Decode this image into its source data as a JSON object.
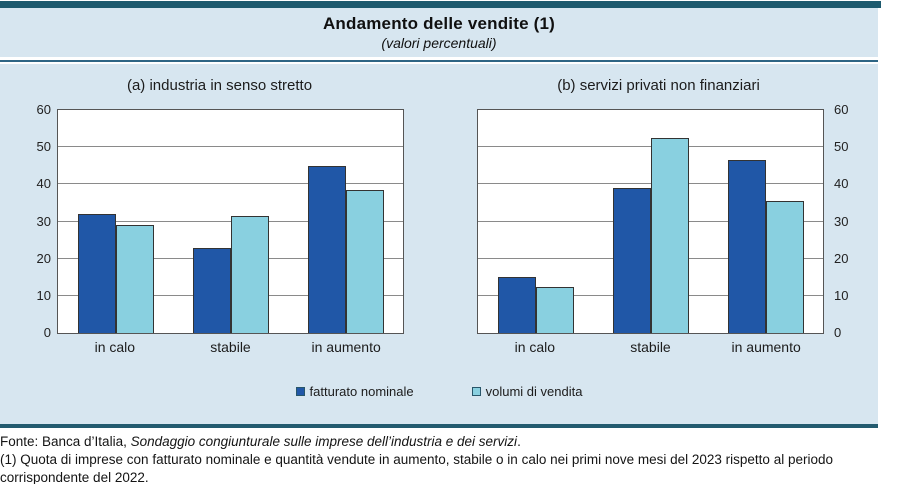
{
  "header": {
    "title": "Andamento delle vendite (1)",
    "subtitle": "(valori percentuali)"
  },
  "colors": {
    "band_background": "#d7e6f0",
    "top_rule": "#1d5a6e",
    "separator": "#2e6584",
    "bottom_rule": "#235b6f",
    "series_fatturato": "#2057a7",
    "series_volumi": "#89d0e0",
    "bar_border": "#333333",
    "gridline": "#8a8a8a"
  },
  "chart_data": [
    {
      "type": "bar",
      "title": "(a) industria in senso stretto",
      "categories": [
        "in calo",
        "stabile",
        "in aumento"
      ],
      "series": [
        {
          "name": "fatturato nominale",
          "color": "#2057a7",
          "values": [
            32,
            23,
            45
          ]
        },
        {
          "name": "volumi di vendita",
          "color": "#89d0e0",
          "values": [
            29,
            31.5,
            38.5
          ]
        }
      ],
      "ylim": [
        0,
        60
      ],
      "yticks": [
        0,
        10,
        20,
        30,
        40,
        50,
        60
      ],
      "grid": "horizontal",
      "axis_side": "left"
    },
    {
      "type": "bar",
      "title": "(b) servizi privati non finanziari",
      "categories": [
        "in calo",
        "stabile",
        "in aumento"
      ],
      "series": [
        {
          "name": "fatturato nominale",
          "color": "#2057a7",
          "values": [
            15,
            39,
            46.5
          ]
        },
        {
          "name": "volumi di vendita",
          "color": "#89d0e0",
          "values": [
            12.5,
            52.5,
            35.5
          ]
        }
      ],
      "ylim": [
        0,
        60
      ],
      "yticks": [
        0,
        10,
        20,
        30,
        40,
        50,
        60
      ],
      "grid": "horizontal",
      "axis_side": "right"
    }
  ],
  "legend": {
    "position": "bottom-center",
    "items": [
      {
        "label": "fatturato nominale",
        "color": "#2057a7"
      },
      {
        "label": "volumi di vendita",
        "color": "#89d0e0"
      }
    ]
  },
  "footnotes": {
    "fonte_prefix": "Fonte: Banca d’Italia, ",
    "fonte_italic": "Sondaggio congiunturale sulle imprese dell’industria e dei servizi",
    "fonte_suffix": ".",
    "note1": "(1) Quota di imprese con fatturato nominale e quantità vendute in aumento, stabile o in calo nei primi nove mesi del 2023 rispetto al periodo corrispondente del 2022."
  }
}
